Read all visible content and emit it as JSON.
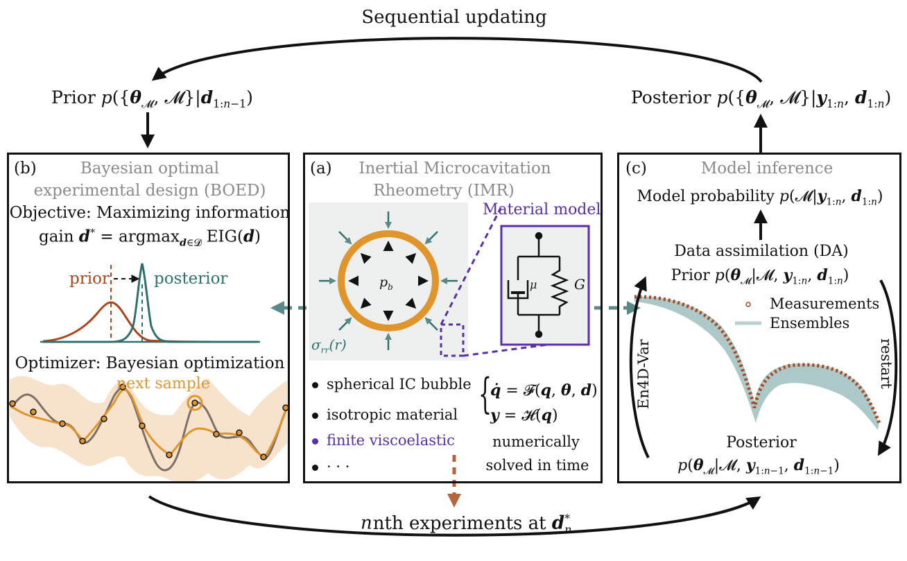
{
  "top": {
    "sequential_updating": "Sequential updating",
    "prior_label": "Prior",
    "posterior_label": "Posterior"
  },
  "bottom": {
    "nth_experiments": "nth experiments at"
  },
  "panel_b": {
    "tag": "(b)",
    "title_line1": "Bayesian optimal",
    "title_line2": "experimental design (BOED)",
    "objective_line1": "Objective: Maximizing information",
    "objective_line2": "gain",
    "prior": "prior",
    "posterior": "posterior",
    "optimizer": "Optimizer: Bayesian optimization",
    "next_sample": "next sample"
  },
  "panel_a": {
    "tag": "(a)",
    "title_line1": "Inertial Microcavitation",
    "title_line2": "Rheometry (IMR)",
    "material_model": "Material model",
    "pressure": "p",
    "pressure_sub": "b",
    "stress": "σ",
    "mu": "μ",
    "G": "G",
    "bullets": [
      "spherical IC bubble",
      "isotropic material",
      "finite viscoelastic",
      "· · ·"
    ],
    "numerically": "numerically",
    "solved": "solved in time"
  },
  "panel_c": {
    "tag": "(c)",
    "title": "Model inference",
    "model_probability": "Model probability",
    "data_assimilation": "Data assimilation (DA)",
    "prior": "Prior",
    "posterior": "Posterior",
    "legend_measurements": "Measurements",
    "legend_ensembles": "Ensembles",
    "en4dvar": "En4D-Var",
    "restart": "restart"
  },
  "colors": {
    "prior": "#a8461d",
    "posterior": "#2f6f70",
    "gp": "#e0952c",
    "gp_band": "#f6dfc6",
    "true_fn": "#7a7068",
    "material": "#5a2ea6",
    "bubble": "#e0952c",
    "arrow_teal": "#5a8a88",
    "arrow_rust": "#b3653e",
    "bg_gray": "#eef0ef"
  }
}
